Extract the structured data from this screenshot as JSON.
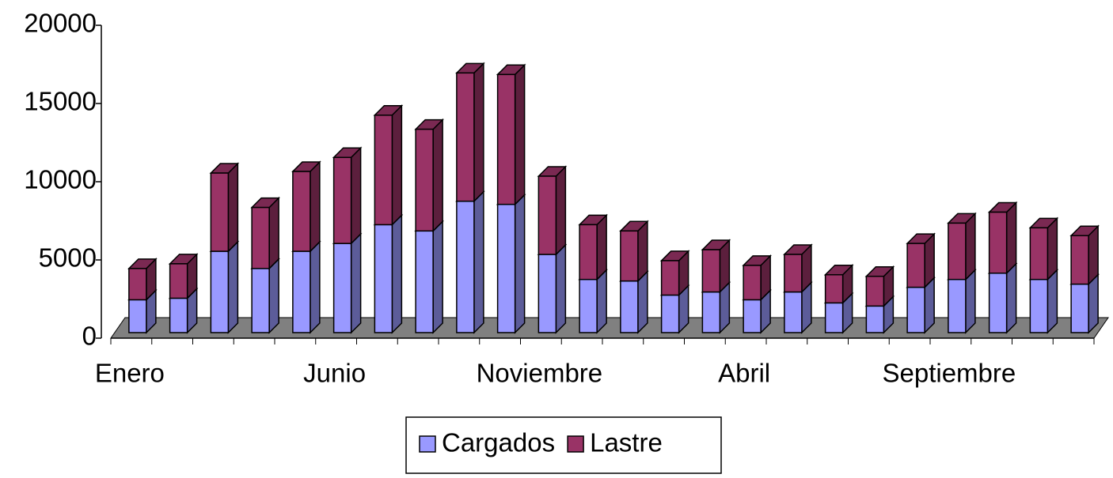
{
  "chart_data": {
    "type": "bar3d_stacked",
    "categories": [
      "Enero",
      null,
      null,
      null,
      null,
      "Junio",
      null,
      null,
      null,
      null,
      "Noviembre",
      null,
      null,
      null,
      null,
      "Abril",
      null,
      null,
      null,
      null,
      "Septiembre",
      null,
      null,
      null
    ],
    "series": [
      {
        "name": "Cargados",
        "color": "#9999ff",
        "values": [
          2100,
          2200,
          5200,
          4100,
          5200,
          5700,
          6900,
          6500,
          8400,
          8200,
          5000,
          3400,
          3300,
          2400,
          2600,
          2100,
          2600,
          1900,
          1700,
          2900,
          3400,
          3800,
          3400,
          3100
        ]
      },
      {
        "name": "Lastre",
        "color": "#993366",
        "values": [
          2000,
          2200,
          5000,
          3900,
          5100,
          5500,
          7000,
          6500,
          8200,
          8300,
          5000,
          3500,
          3200,
          2200,
          2700,
          2200,
          2400,
          1800,
          1900,
          2800,
          3600,
          3900,
          3300,
          3100
        ]
      }
    ],
    "ylim": [
      0,
      20000
    ],
    "yticks": [
      0,
      5000,
      10000,
      15000,
      20000
    ],
    "stacked": true,
    "legend": "bottom"
  }
}
